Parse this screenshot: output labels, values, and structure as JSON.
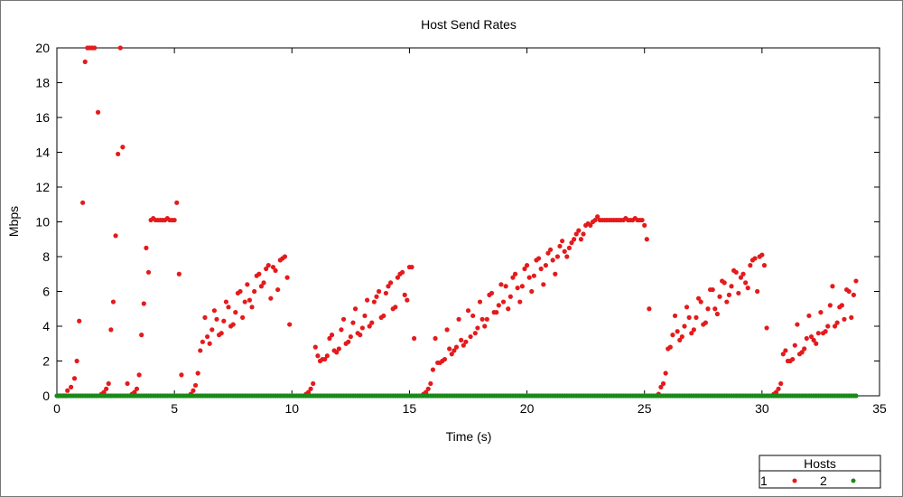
{
  "chart_data": {
    "type": "scatter",
    "title": "Host Send Rates",
    "xlabel": "Time (s)",
    "ylabel": "Mbps",
    "xlim": [
      0,
      35
    ],
    "ylim": [
      0,
      20
    ],
    "xticks": [
      "0",
      "5",
      "10",
      "15",
      "20",
      "25",
      "30",
      "35"
    ],
    "yticks": [
      "0",
      "2",
      "4",
      "6",
      "8",
      "10",
      "12",
      "14",
      "16",
      "18",
      "20"
    ],
    "grid": false,
    "legend": {
      "title": "Hosts",
      "placement": "bottom-right outside",
      "entries": [
        {
          "label": "1",
          "color": "#e41a1c"
        },
        {
          "label": "2",
          "color": "#1a8a1a"
        }
      ]
    },
    "series": [
      {
        "name": "1",
        "color": "#e41a1c",
        "points": [
          [
            0.05,
            0
          ],
          [
            0.15,
            0
          ],
          [
            0.25,
            0
          ],
          [
            0.35,
            0
          ],
          [
            0.45,
            0.3
          ],
          [
            0.6,
            0.5
          ],
          [
            0.75,
            1.0
          ],
          [
            0.85,
            2.0
          ],
          [
            0.95,
            4.3
          ],
          [
            1.1,
            11.1
          ],
          [
            1.2,
            19.2
          ],
          [
            1.3,
            20
          ],
          [
            1.4,
            20
          ],
          [
            1.5,
            20
          ],
          [
            1.6,
            20
          ],
          [
            1.75,
            16.3
          ],
          [
            1.9,
            0.1
          ],
          [
            2.0,
            0.2
          ],
          [
            2.1,
            0.4
          ],
          [
            2.2,
            0.7
          ],
          [
            2.3,
            3.8
          ],
          [
            2.4,
            5.4
          ],
          [
            2.5,
            9.2
          ],
          [
            2.6,
            13.9
          ],
          [
            2.7,
            20
          ],
          [
            2.8,
            14.3
          ],
          [
            3.0,
            0.7
          ],
          [
            3.2,
            0.1
          ],
          [
            3.3,
            0.2
          ],
          [
            3.4,
            0.4
          ],
          [
            3.5,
            1.2
          ],
          [
            3.6,
            3.5
          ],
          [
            3.7,
            5.3
          ],
          [
            3.8,
            8.5
          ],
          [
            3.9,
            7.1
          ],
          [
            4.0,
            10.1
          ],
          [
            4.1,
            10.2
          ],
          [
            4.2,
            10.1
          ],
          [
            4.3,
            10.1
          ],
          [
            4.4,
            10.1
          ],
          [
            4.5,
            10.1
          ],
          [
            4.6,
            10.1
          ],
          [
            4.7,
            10.2
          ],
          [
            4.8,
            10.1
          ],
          [
            4.9,
            10.1
          ],
          [
            5.0,
            10.1
          ],
          [
            5.1,
            11.1
          ],
          [
            5.2,
            7.0
          ],
          [
            5.3,
            1.2
          ],
          [
            5.7,
            0.1
          ],
          [
            5.8,
            0.3
          ],
          [
            5.9,
            0.6
          ],
          [
            6.0,
            1.3
          ],
          [
            6.1,
            2.6
          ],
          [
            6.2,
            3.1
          ],
          [
            6.3,
            4.5
          ],
          [
            6.4,
            3.4
          ],
          [
            6.5,
            3.0
          ],
          [
            6.6,
            3.8
          ],
          [
            6.7,
            4.9
          ],
          [
            6.8,
            4.4
          ],
          [
            6.9,
            3.5
          ],
          [
            7.0,
            3.6
          ],
          [
            7.1,
            4.3
          ],
          [
            7.2,
            5.4
          ],
          [
            7.3,
            5.1
          ],
          [
            7.4,
            4.0
          ],
          [
            7.5,
            4.1
          ],
          [
            7.6,
            4.8
          ],
          [
            7.7,
            5.9
          ],
          [
            7.8,
            6.0
          ],
          [
            7.9,
            4.5
          ],
          [
            8.0,
            5.4
          ],
          [
            8.1,
            6.4
          ],
          [
            8.2,
            5.5
          ],
          [
            8.3,
            5.1
          ],
          [
            8.4,
            6.0
          ],
          [
            8.5,
            6.9
          ],
          [
            8.6,
            7.0
          ],
          [
            8.7,
            6.3
          ],
          [
            8.8,
            6.5
          ],
          [
            8.9,
            7.3
          ],
          [
            9.0,
            7.5
          ],
          [
            9.1,
            5.6
          ],
          [
            9.2,
            7.4
          ],
          [
            9.3,
            7.2
          ],
          [
            9.4,
            6.1
          ],
          [
            9.5,
            7.8
          ],
          [
            9.6,
            7.9
          ],
          [
            9.7,
            8.0
          ],
          [
            9.8,
            6.8
          ],
          [
            9.9,
            4.1
          ],
          [
            10.6,
            0.1
          ],
          [
            10.7,
            0.2
          ],
          [
            10.8,
            0.4
          ],
          [
            10.9,
            0.7
          ],
          [
            11.0,
            2.8
          ],
          [
            11.1,
            2.3
          ],
          [
            11.2,
            2.0
          ],
          [
            11.3,
            2.1
          ],
          [
            11.4,
            2.1
          ],
          [
            11.5,
            2.3
          ],
          [
            11.6,
            3.3
          ],
          [
            11.7,
            3.5
          ],
          [
            11.8,
            2.6
          ],
          [
            11.9,
            2.5
          ],
          [
            12.0,
            2.7
          ],
          [
            12.1,
            3.8
          ],
          [
            12.2,
            4.4
          ],
          [
            12.3,
            3.0
          ],
          [
            12.4,
            3.1
          ],
          [
            12.5,
            3.4
          ],
          [
            12.6,
            4.2
          ],
          [
            12.7,
            5.0
          ],
          [
            12.8,
            3.6
          ],
          [
            12.9,
            3.5
          ],
          [
            13.0,
            3.9
          ],
          [
            13.1,
            4.6
          ],
          [
            13.2,
            5.5
          ],
          [
            13.3,
            4.0
          ],
          [
            13.4,
            4.2
          ],
          [
            13.5,
            5.4
          ],
          [
            13.6,
            5.7
          ],
          [
            13.7,
            6.0
          ],
          [
            13.8,
            4.5
          ],
          [
            13.9,
            4.6
          ],
          [
            14.0,
            5.9
          ],
          [
            14.1,
            6.3
          ],
          [
            14.2,
            6.5
          ],
          [
            14.3,
            5.0
          ],
          [
            14.4,
            5.1
          ],
          [
            14.5,
            6.8
          ],
          [
            14.6,
            7.0
          ],
          [
            14.7,
            7.1
          ],
          [
            14.8,
            5.8
          ],
          [
            14.9,
            5.5
          ],
          [
            15.0,
            7.4
          ],
          [
            15.1,
            7.4
          ],
          [
            15.2,
            3.3
          ],
          [
            15.6,
            0.1
          ],
          [
            15.7,
            0.2
          ],
          [
            15.8,
            0.4
          ],
          [
            15.9,
            0.7
          ],
          [
            16.0,
            1.5
          ],
          [
            16.1,
            3.3
          ],
          [
            16.2,
            1.9
          ],
          [
            16.3,
            1.9
          ],
          [
            16.4,
            2.0
          ],
          [
            16.5,
            2.1
          ],
          [
            16.6,
            3.8
          ],
          [
            16.7,
            2.7
          ],
          [
            16.8,
            2.4
          ],
          [
            16.9,
            2.6
          ],
          [
            17.0,
            2.8
          ],
          [
            17.1,
            4.4
          ],
          [
            17.2,
            3.2
          ],
          [
            17.3,
            2.9
          ],
          [
            17.4,
            3.1
          ],
          [
            17.5,
            4.9
          ],
          [
            17.6,
            3.4
          ],
          [
            17.7,
            4.6
          ],
          [
            17.8,
            3.6
          ],
          [
            17.9,
            3.9
          ],
          [
            18.0,
            5.4
          ],
          [
            18.1,
            4.4
          ],
          [
            18.2,
            4.0
          ],
          [
            18.3,
            4.4
          ],
          [
            18.4,
            5.8
          ],
          [
            18.5,
            5.9
          ],
          [
            18.6,
            4.8
          ],
          [
            18.7,
            4.8
          ],
          [
            18.8,
            5.2
          ],
          [
            18.9,
            6.4
          ],
          [
            19.0,
            5.4
          ],
          [
            19.1,
            6.3
          ],
          [
            19.2,
            5.0
          ],
          [
            19.3,
            5.7
          ],
          [
            19.4,
            6.8
          ],
          [
            19.5,
            7.0
          ],
          [
            19.6,
            6.2
          ],
          [
            19.7,
            5.4
          ],
          [
            19.8,
            6.3
          ],
          [
            19.9,
            7.3
          ],
          [
            20.0,
            7.5
          ],
          [
            20.1,
            6.8
          ],
          [
            20.2,
            6.0
          ],
          [
            20.3,
            6.9
          ],
          [
            20.4,
            7.8
          ],
          [
            20.5,
            7.9
          ],
          [
            20.6,
            7.3
          ],
          [
            20.7,
            6.4
          ],
          [
            20.8,
            7.5
          ],
          [
            20.9,
            8.2
          ],
          [
            21.0,
            8.4
          ],
          [
            21.1,
            7.8
          ],
          [
            21.2,
            7.0
          ],
          [
            21.3,
            8.0
          ],
          [
            21.4,
            8.6
          ],
          [
            21.5,
            8.9
          ],
          [
            21.6,
            8.3
          ],
          [
            21.7,
            8.0
          ],
          [
            21.8,
            8.5
          ],
          [
            21.9,
            8.8
          ],
          [
            22.0,
            9.0
          ],
          [
            22.1,
            9.3
          ],
          [
            22.2,
            9.5
          ],
          [
            22.3,
            9.0
          ],
          [
            22.4,
            9.3
          ],
          [
            22.5,
            9.8
          ],
          [
            22.6,
            9.9
          ],
          [
            22.7,
            9.8
          ],
          [
            22.8,
            10.0
          ],
          [
            22.9,
            10.1
          ],
          [
            23.0,
            10.3
          ],
          [
            23.1,
            10.1
          ],
          [
            23.2,
            10.1
          ],
          [
            23.3,
            10.1
          ],
          [
            23.4,
            10.1
          ],
          [
            23.5,
            10.1
          ],
          [
            23.6,
            10.1
          ],
          [
            23.7,
            10.1
          ],
          [
            23.8,
            10.1
          ],
          [
            23.9,
            10.1
          ],
          [
            24.0,
            10.1
          ],
          [
            24.1,
            10.1
          ],
          [
            24.2,
            10.2
          ],
          [
            24.3,
            10.1
          ],
          [
            24.4,
            10.1
          ],
          [
            24.5,
            10.1
          ],
          [
            24.6,
            10.2
          ],
          [
            24.7,
            10.1
          ],
          [
            24.8,
            10.1
          ],
          [
            24.9,
            10.1
          ],
          [
            25.0,
            9.8
          ],
          [
            25.1,
            9.0
          ],
          [
            25.2,
            5.0
          ],
          [
            25.6,
            0.1
          ],
          [
            25.7,
            0.5
          ],
          [
            25.8,
            0.7
          ],
          [
            25.9,
            1.3
          ],
          [
            26.0,
            2.7
          ],
          [
            26.1,
            2.8
          ],
          [
            26.2,
            3.5
          ],
          [
            26.3,
            4.6
          ],
          [
            26.4,
            3.7
          ],
          [
            26.5,
            3.2
          ],
          [
            26.6,
            3.4
          ],
          [
            26.7,
            4.0
          ],
          [
            26.8,
            5.1
          ],
          [
            26.9,
            4.5
          ],
          [
            27.0,
            3.6
          ],
          [
            27.1,
            3.8
          ],
          [
            27.2,
            4.5
          ],
          [
            27.3,
            5.6
          ],
          [
            27.4,
            5.4
          ],
          [
            27.5,
            4.1
          ],
          [
            27.6,
            4.2
          ],
          [
            27.7,
            5.0
          ],
          [
            27.8,
            6.1
          ],
          [
            27.9,
            6.1
          ],
          [
            28.0,
            5.0
          ],
          [
            28.1,
            4.7
          ],
          [
            28.2,
            5.7
          ],
          [
            28.3,
            6.6
          ],
          [
            28.4,
            6.5
          ],
          [
            28.5,
            5.4
          ],
          [
            28.6,
            5.8
          ],
          [
            28.7,
            6.3
          ],
          [
            28.8,
            7.2
          ],
          [
            28.9,
            7.1
          ],
          [
            29.0,
            5.9
          ],
          [
            29.1,
            6.8
          ],
          [
            29.2,
            7.0
          ],
          [
            29.3,
            6.5
          ],
          [
            29.4,
            6.2
          ],
          [
            29.5,
            7.5
          ],
          [
            29.6,
            7.8
          ],
          [
            29.7,
            7.9
          ],
          [
            29.8,
            6.0
          ],
          [
            29.9,
            8.0
          ],
          [
            30.0,
            8.1
          ],
          [
            30.1,
            7.5
          ],
          [
            30.2,
            3.9
          ],
          [
            30.5,
            0.1
          ],
          [
            30.6,
            0.2
          ],
          [
            30.7,
            0.4
          ],
          [
            30.8,
            0.7
          ],
          [
            30.9,
            2.4
          ],
          [
            31.0,
            2.6
          ],
          [
            31.1,
            2.0
          ],
          [
            31.2,
            2.0
          ],
          [
            31.3,
            2.1
          ],
          [
            31.4,
            2.9
          ],
          [
            31.5,
            4.1
          ],
          [
            31.6,
            2.4
          ],
          [
            31.7,
            2.5
          ],
          [
            31.8,
            2.7
          ],
          [
            31.9,
            3.3
          ],
          [
            32.0,
            4.6
          ],
          [
            32.1,
            3.4
          ],
          [
            32.2,
            3.2
          ],
          [
            32.3,
            3.0
          ],
          [
            32.4,
            3.6
          ],
          [
            32.5,
            4.8
          ],
          [
            32.6,
            3.6
          ],
          [
            32.7,
            3.7
          ],
          [
            32.8,
            4.0
          ],
          [
            32.9,
            5.2
          ],
          [
            33.0,
            6.3
          ],
          [
            33.1,
            4.0
          ],
          [
            33.2,
            4.2
          ],
          [
            33.3,
            5.1
          ],
          [
            33.4,
            5.2
          ],
          [
            33.5,
            4.4
          ],
          [
            33.6,
            6.1
          ],
          [
            33.7,
            6.0
          ],
          [
            33.8,
            4.5
          ],
          [
            33.9,
            5.8
          ],
          [
            34.0,
            6.6
          ]
        ]
      },
      {
        "name": "2",
        "color": "#1a8a1a",
        "constant_y": 0,
        "x_start": 0.0,
        "x_end": 34.0,
        "x_step": 0.1
      }
    ]
  }
}
